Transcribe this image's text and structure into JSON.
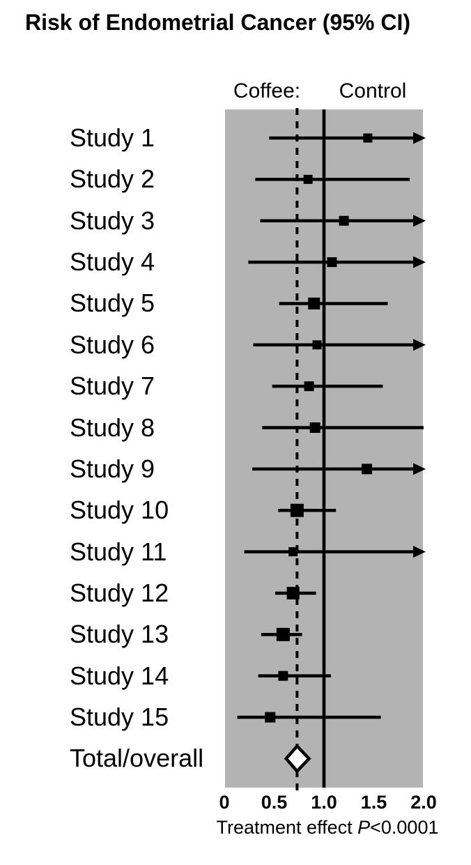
{
  "title": "Risk of Endometrial Cancer (95% CI)",
  "column_headers": {
    "treatment": "Coffee:",
    "control": "Control"
  },
  "caption": {
    "prefix": "Treatment effect ",
    "pvalue_label": "P",
    "pvalue_rest": "<0.0001"
  },
  "colors": {
    "plot_bg": "#b3b3b3",
    "ink": "#000000",
    "diamond_fill": "#ffffff"
  },
  "chart_data": {
    "type": "forest",
    "title": "Risk of Endometrial Cancer (95% CI)",
    "xlabel": "Treatment effect P<0.0001",
    "xlim": [
      0,
      2.0
    ],
    "x_tick_labels": [
      "0",
      "0.5",
      "1.0",
      "1.5",
      "2.0"
    ],
    "x_tick_values": [
      0,
      0.5,
      1.0,
      1.5,
      2.0
    ],
    "reference_line_x": 1.0,
    "overall_dashed_line_x": 0.73,
    "studies": [
      {
        "label": "Study 1",
        "estimate": 1.44,
        "ci_low": 0.45,
        "ci_high": 2.0,
        "arrow": true,
        "marker_size": 13
      },
      {
        "label": "Study 2",
        "estimate": 0.84,
        "ci_low": 0.31,
        "ci_high": 1.86,
        "arrow": false,
        "marker_size": 13
      },
      {
        "label": "Study 3",
        "estimate": 1.2,
        "ci_low": 0.36,
        "ci_high": 2.0,
        "arrow": true,
        "marker_size": 14
      },
      {
        "label": "Study 4",
        "estimate": 1.08,
        "ci_low": 0.24,
        "ci_high": 2.0,
        "arrow": true,
        "marker_size": 14
      },
      {
        "label": "Study 5",
        "estimate": 0.9,
        "ci_low": 0.55,
        "ci_high": 1.64,
        "arrow": false,
        "marker_size": 17
      },
      {
        "label": "Study 6",
        "estimate": 0.93,
        "ci_low": 0.29,
        "ci_high": 2.0,
        "arrow": true,
        "marker_size": 13
      },
      {
        "label": "Study 7",
        "estimate": 0.85,
        "ci_low": 0.48,
        "ci_high": 1.59,
        "arrow": false,
        "marker_size": 14
      },
      {
        "label": "Study 8",
        "estimate": 0.91,
        "ci_low": 0.38,
        "ci_high": 2.0,
        "arrow": false,
        "marker_size": 15
      },
      {
        "label": "Study 9",
        "estimate": 1.43,
        "ci_low": 0.28,
        "ci_high": 2.0,
        "arrow": true,
        "marker_size": 15
      },
      {
        "label": "Study 10",
        "estimate": 0.73,
        "ci_low": 0.54,
        "ci_high": 1.12,
        "arrow": false,
        "marker_size": 19
      },
      {
        "label": "Study 11",
        "estimate": 0.69,
        "ci_low": 0.2,
        "ci_high": 2.0,
        "arrow": true,
        "marker_size": 13
      },
      {
        "label": "Study 12",
        "estimate": 0.69,
        "ci_low": 0.51,
        "ci_high": 0.92,
        "arrow": false,
        "marker_size": 18
      },
      {
        "label": "Study 13",
        "estimate": 0.59,
        "ci_low": 0.37,
        "ci_high": 0.78,
        "arrow": false,
        "marker_size": 19
      },
      {
        "label": "Study 14",
        "estimate": 0.59,
        "ci_low": 0.34,
        "ci_high": 1.07,
        "arrow": false,
        "marker_size": 14
      },
      {
        "label": "Study 15",
        "estimate": 0.46,
        "ci_low": 0.13,
        "ci_high": 1.57,
        "arrow": false,
        "marker_size": 15
      }
    ],
    "overall": {
      "label": "Total/overall",
      "estimate": 0.73,
      "ci_low": 0.62,
      "ci_high": 0.85
    }
  }
}
